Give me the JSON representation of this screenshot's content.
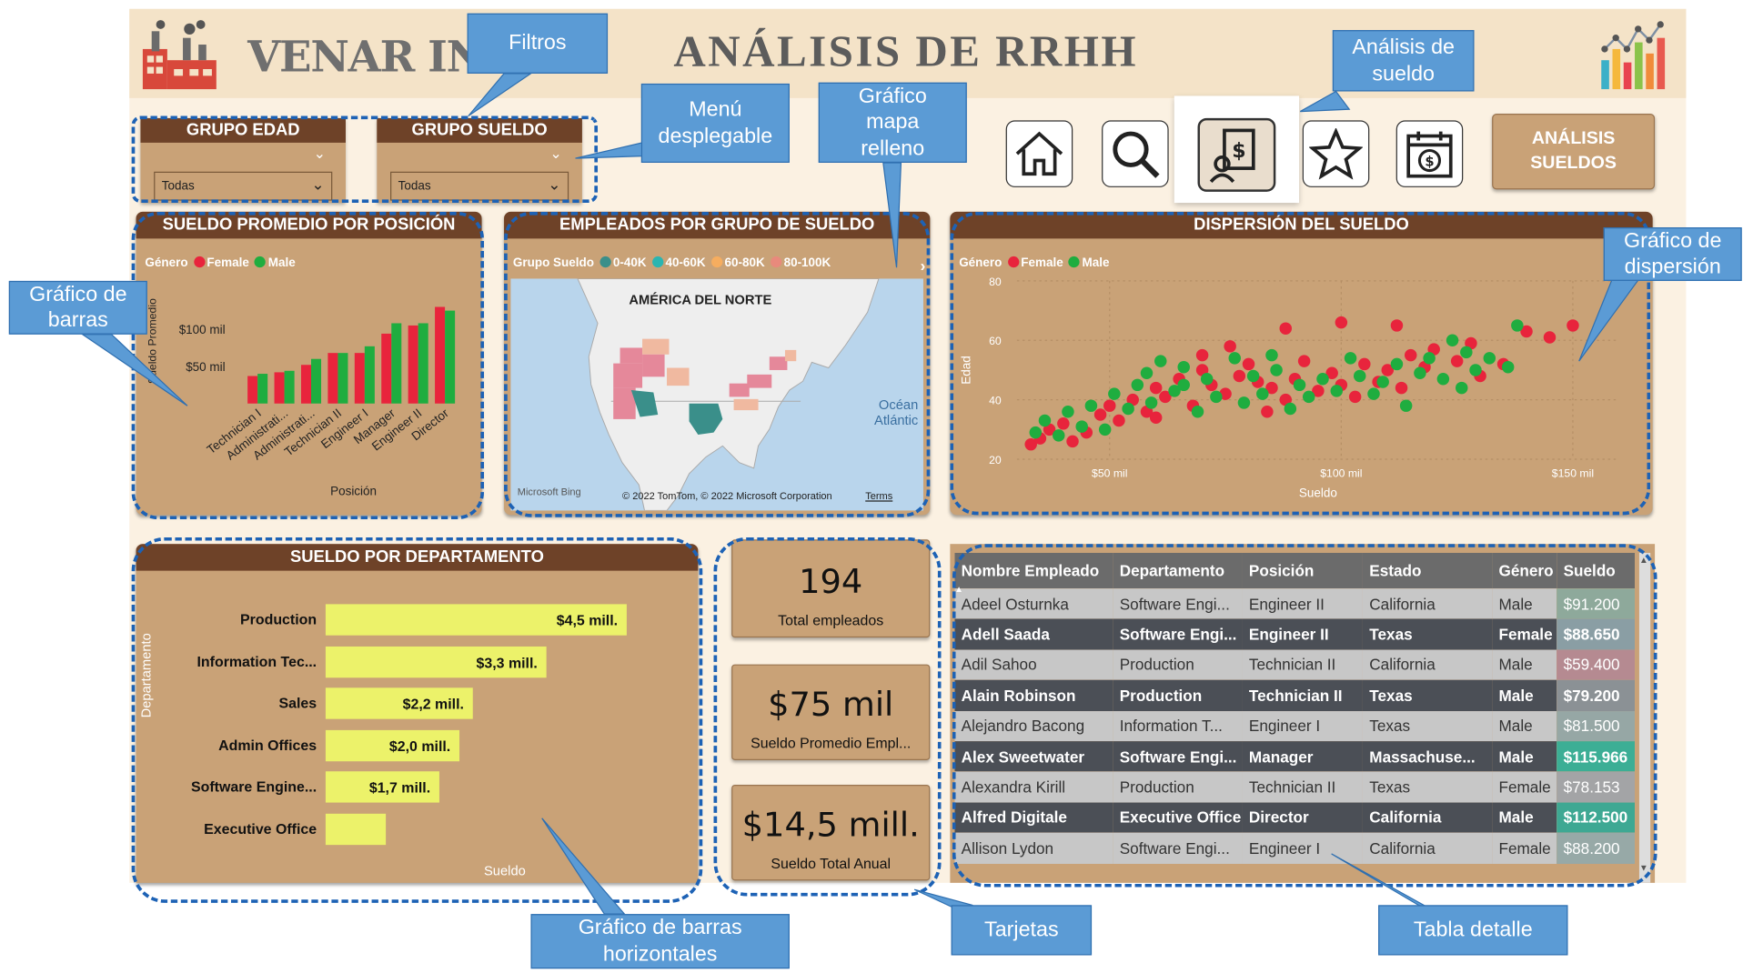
{
  "header": {
    "company": "VENAR INC.",
    "title": "ANÁLISIS DE RRHH"
  },
  "filters": [
    {
      "label": "GRUPO EDAD",
      "value": "Todas"
    },
    {
      "label": "GRUPO SUELDO",
      "value": "Todas"
    }
  ],
  "nav": {
    "icons": [
      "home-icon",
      "search-icon",
      "salary-analysis-icon",
      "star-icon",
      "calendar-money-icon"
    ],
    "active_index": 2,
    "page_button": "ANÁLISIS SUELDOS"
  },
  "panels": {
    "bar": {
      "title": "SUELDO PROMEDIO POR POSICIÓN",
      "legend_title": "Género",
      "ylabel": "Sueldo Promedio",
      "xlabel": "Posición"
    },
    "map": {
      "title": "EMPLEADOS POR GRUPO DE SUELDO",
      "legend_title": "Grupo Sueldo",
      "region_label": "AMÉRICA DEL NORTE",
      "ocean_label_1": "Océan",
      "ocean_label_2": "Atlántic",
      "bing": "Microsoft Bing",
      "copyright": "© 2022 TomTom, © 2022 Microsoft Corporation",
      "terms": "Terms"
    },
    "scatter": {
      "title": "DISPERSIÓN DEL SUELDO",
      "legend_title": "Género",
      "ylabel": "Edad",
      "xlabel": "Sueldo"
    },
    "hbar": {
      "title": "SUELDO POR DEPARTAMENTO",
      "ylabel": "Departamento",
      "xlabel": "Sueldo"
    }
  },
  "chart_data": [
    {
      "type": "bar",
      "title": "SUELDO PROMEDIO POR POSICIÓN",
      "xlabel": "Posición",
      "ylabel": "Sueldo Promedio",
      "categories": [
        "Technician I",
        "Administrati...",
        "Administrati...",
        "Technician II",
        "Engineer I",
        "Manager",
        "Engineer II",
        "Director"
      ],
      "series": [
        {
          "name": "Female",
          "color": "#e8243c",
          "values": [
            37,
            42,
            52,
            68,
            68,
            94,
            105,
            130
          ]
        },
        {
          "name": "Male",
          "color": "#1fad3f",
          "values": [
            40,
            44,
            60,
            68,
            77,
            108,
            108,
            125
          ]
        }
      ],
      "yticks": [
        {
          "value": 50,
          "label": "$50 mil"
        },
        {
          "value": 100,
          "label": "$100 mil"
        }
      ],
      "ylim": [
        0,
        150
      ]
    },
    {
      "type": "map",
      "title": "EMPLEADOS POR GRUPO DE SUELDO",
      "legend": [
        {
          "name": "0-40K",
          "color": "#3a8f8a"
        },
        {
          "name": "40-60K",
          "color": "#2bb5b1"
        },
        {
          "name": "60-80K",
          "color": "#f6ad5f"
        },
        {
          "name": "80-100K",
          "color": "#e88a7c"
        }
      ]
    },
    {
      "type": "scatter",
      "title": "DISPERSIÓN DEL SUELDO",
      "xlabel": "Sueldo",
      "ylabel": "Edad",
      "xlim": [
        30,
        160
      ],
      "ylim": [
        20,
        80
      ],
      "xticks": [
        {
          "value": 50,
          "label": "$50 mil"
        },
        {
          "value": 100,
          "label": "$100 mil"
        },
        {
          "value": 150,
          "label": "$150 mil"
        }
      ],
      "yticks": [
        20,
        40,
        60,
        80
      ],
      "series": [
        {
          "name": "Female",
          "color": "#e8243c",
          "points": [
            [
              33,
              25
            ],
            [
              35,
              27
            ],
            [
              37,
              30
            ],
            [
              40,
              32
            ],
            [
              42,
              26
            ],
            [
              45,
              29
            ],
            [
              48,
              35
            ],
            [
              50,
              38
            ],
            [
              52,
              33
            ],
            [
              55,
              40
            ],
            [
              58,
              36
            ],
            [
              60,
              44
            ],
            [
              62,
              41
            ],
            [
              65,
              47
            ],
            [
              68,
              38
            ],
            [
              70,
              50
            ],
            [
              72,
              45
            ],
            [
              75,
              42
            ],
            [
              78,
              48
            ],
            [
              80,
              52
            ],
            [
              82,
              46
            ],
            [
              85,
              44
            ],
            [
              88,
              40
            ],
            [
              90,
              47
            ],
            [
              92,
              53
            ],
            [
              95,
              43
            ],
            [
              98,
              49
            ],
            [
              100,
              45
            ],
            [
              103,
              41
            ],
            [
              105,
              52
            ],
            [
              108,
              46
            ],
            [
              110,
              50
            ],
            [
              113,
              44
            ],
            [
              115,
              55
            ],
            [
              118,
              51
            ],
            [
              120,
              57
            ],
            [
              125,
              53
            ],
            [
              128,
              59
            ],
            [
              130,
              48
            ],
            [
              135,
              52
            ],
            [
              140,
              63
            ],
            [
              145,
              61
            ],
            [
              150,
              65
            ],
            [
              112,
              65
            ],
            [
              88,
              64
            ],
            [
              100,
              66
            ],
            [
              70,
              55
            ],
            [
              60,
              34
            ],
            [
              76,
              58
            ],
            [
              84,
              36
            ]
          ]
        },
        {
          "name": "Male",
          "color": "#1fad3f",
          "points": [
            [
              34,
              29
            ],
            [
              36,
              33
            ],
            [
              39,
              28
            ],
            [
              41,
              36
            ],
            [
              44,
              31
            ],
            [
              46,
              38
            ],
            [
              49,
              30
            ],
            [
              51,
              42
            ],
            [
              54,
              37
            ],
            [
              56,
              45
            ],
            [
              59,
              39
            ],
            [
              61,
              53
            ],
            [
              64,
              43
            ],
            [
              66,
              51
            ],
            [
              69,
              36
            ],
            [
              71,
              47
            ],
            [
              73,
              41
            ],
            [
              77,
              54
            ],
            [
              79,
              39
            ],
            [
              81,
              48
            ],
            [
              83,
              42
            ],
            [
              86,
              50
            ],
            [
              89,
              37
            ],
            [
              91,
              45
            ],
            [
              93,
              41
            ],
            [
              96,
              47
            ],
            [
              99,
              43
            ],
            [
              102,
              54
            ],
            [
              104,
              48
            ],
            [
              107,
              42
            ],
            [
              109,
              46
            ],
            [
              112,
              52
            ],
            [
              114,
              38
            ],
            [
              117,
              49
            ],
            [
              119,
              54
            ],
            [
              122,
              47
            ],
            [
              124,
              60
            ],
            [
              126,
              44
            ],
            [
              129,
              50
            ],
            [
              132,
              54
            ],
            [
              136,
              51
            ],
            [
              138,
              65
            ],
            [
              127,
              56
            ],
            [
              66,
              45
            ],
            [
              58,
              49
            ],
            [
              85,
              55
            ]
          ]
        }
      ]
    },
    {
      "type": "bar",
      "orientation": "horizontal",
      "title": "SUELDO POR DEPARTAMENTO",
      "xlabel": "Sueldo",
      "ylabel": "Departamento",
      "categories": [
        "Production",
        "Information Tec...",
        "Sales",
        "Admin Offices",
        "Software Engine...",
        "Executive Office"
      ],
      "values": [
        4.5,
        3.3,
        2.2,
        2.0,
        1.7,
        0.9
      ],
      "labels": [
        "$4,5 mill.",
        "$3,3 mill.",
        "$2,2 mill.",
        "$2,0 mill.",
        "$1,7 mill.",
        ""
      ],
      "color": "#ecf26a"
    }
  ],
  "cards": [
    {
      "value": "194",
      "label": "Total empleados"
    },
    {
      "value": "$75 mil",
      "label": "Sueldo Promedio Empl..."
    },
    {
      "value": "$14,5 mill.",
      "label": "Sueldo Total Anual"
    }
  ],
  "table": {
    "headers": [
      "Nombre Empleado",
      "Departamento",
      "Posición",
      "Estado",
      "Género",
      "Sueldo"
    ],
    "rows": [
      {
        "name": "Adeel Osturnka",
        "dept": "Software Engi...",
        "pos": "Engineer II",
        "state": "California",
        "gender": "Male",
        "salary": "$91.200",
        "color": "#8ea99b"
      },
      {
        "name": "Adell Saada",
        "dept": "Software Engi...",
        "pos": "Engineer II",
        "state": "Texas",
        "gender": "Female",
        "salary": "$88.650",
        "color": "#8a9ea4"
      },
      {
        "name": "Adil Sahoo",
        "dept": "Production",
        "pos": "Technician II",
        "state": "California",
        "gender": "Male",
        "salary": "$59.400",
        "color": "#b58a91"
      },
      {
        "name": "Alain Robinson",
        "dept": "Production",
        "pos": "Technician II",
        "state": "Texas",
        "gender": "Male",
        "salary": "$79.200",
        "color": "#8b9195"
      },
      {
        "name": "Alejandro Bacong",
        "dept": "Information T...",
        "pos": "Engineer I",
        "state": "Texas",
        "gender": "Male",
        "salary": "$81.500",
        "color": "#96a7a5"
      },
      {
        "name": "Alex Sweetwater",
        "dept": "Software Engi...",
        "pos": "Manager",
        "state": "Massachuse...",
        "gender": "Male",
        "salary": "$115.966",
        "color": "#3cae95"
      },
      {
        "name": "Alexandra Kirill",
        "dept": "Production",
        "pos": "Technician II",
        "state": "Texas",
        "gender": "Female",
        "salary": "$78.153",
        "color": "#a3a4a6"
      },
      {
        "name": "Alfred Digitale",
        "dept": "Executive Office",
        "pos": "Director",
        "state": "California",
        "gender": "Male",
        "salary": "$112.500",
        "color": "#3ea893"
      },
      {
        "name": "Allison Lydon",
        "dept": "Software Engi...",
        "pos": "Engineer I",
        "state": "California",
        "gender": "Female",
        "salary": "$88.200",
        "color": "#97a9a7"
      }
    ]
  },
  "callouts": {
    "filtros": "Filtros",
    "menu_1": "Menú",
    "menu_2": "desplegable",
    "mapa_1": "Gráfico",
    "mapa_2": "mapa",
    "mapa_3": "relleno",
    "analisis_1": "Análisis de",
    "analisis_2": "sueldo",
    "barras_1": "Gráfico de",
    "barras_2": "barras",
    "dispersion_1": "Gráfico de",
    "dispersion_2": "dispersión",
    "hbar_1": "Gráfico de barras",
    "hbar_2": "horizontales",
    "tarjetas": "Tarjetas",
    "tabla": "Tabla detalle"
  }
}
